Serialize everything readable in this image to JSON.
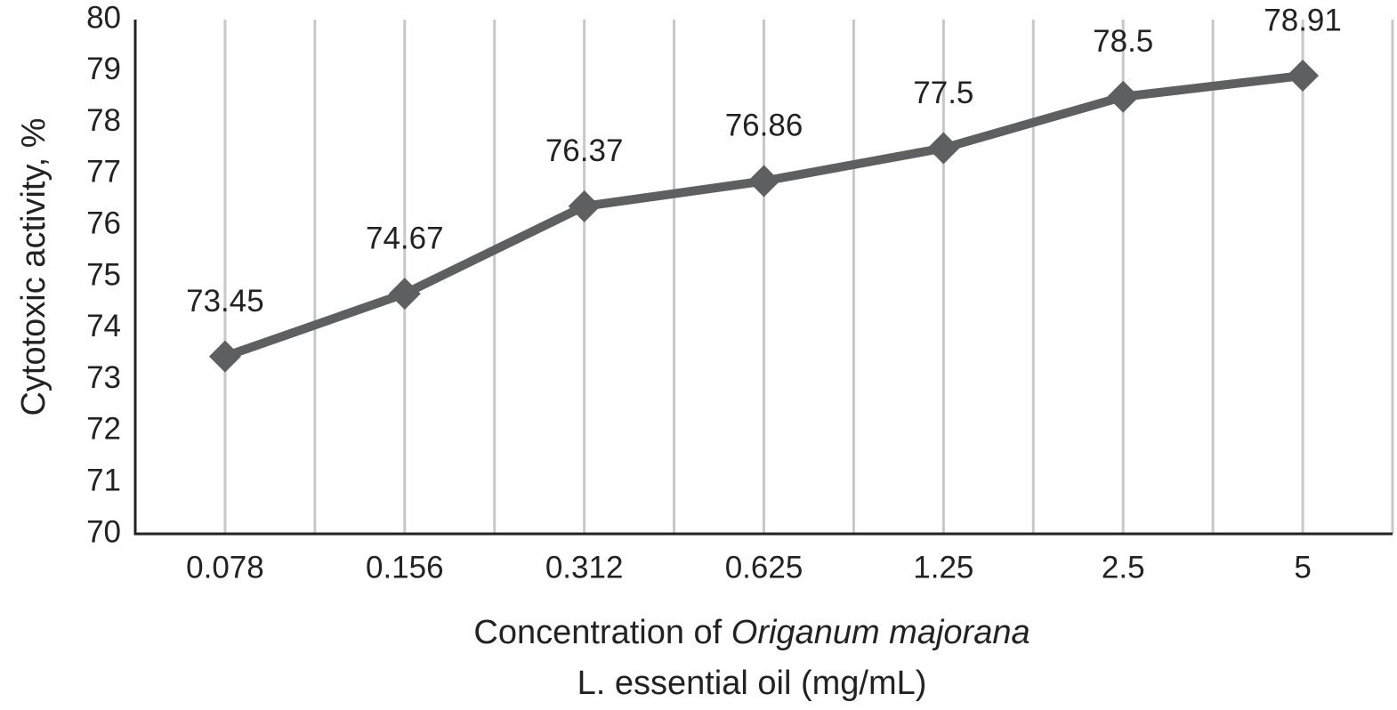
{
  "chart_data": {
    "type": "line",
    "categories": [
      "0.078",
      "0.156",
      "0.312",
      "0.625",
      "1.25",
      "2.5",
      "5"
    ],
    "series": [
      {
        "color": "#5e5f61",
        "values": [
          73.45,
          74.67,
          76.37,
          76.86,
          77.5,
          78.5,
          78.91
        ]
      }
    ],
    "ylim": [
      70,
      80
    ],
    "yticks": [
      70,
      71,
      72,
      73,
      74,
      75,
      76,
      77,
      78,
      79,
      80
    ],
    "ylabel": "Cytotoxic activity, %",
    "xlabel_line1": [
      "Concentration of",
      "Origanum majorana"
    ],
    "xlabel_line2": "L. essential oil (mg/mL)",
    "grid": true,
    "marker": "diamond",
    "data_labels": true
  }
}
